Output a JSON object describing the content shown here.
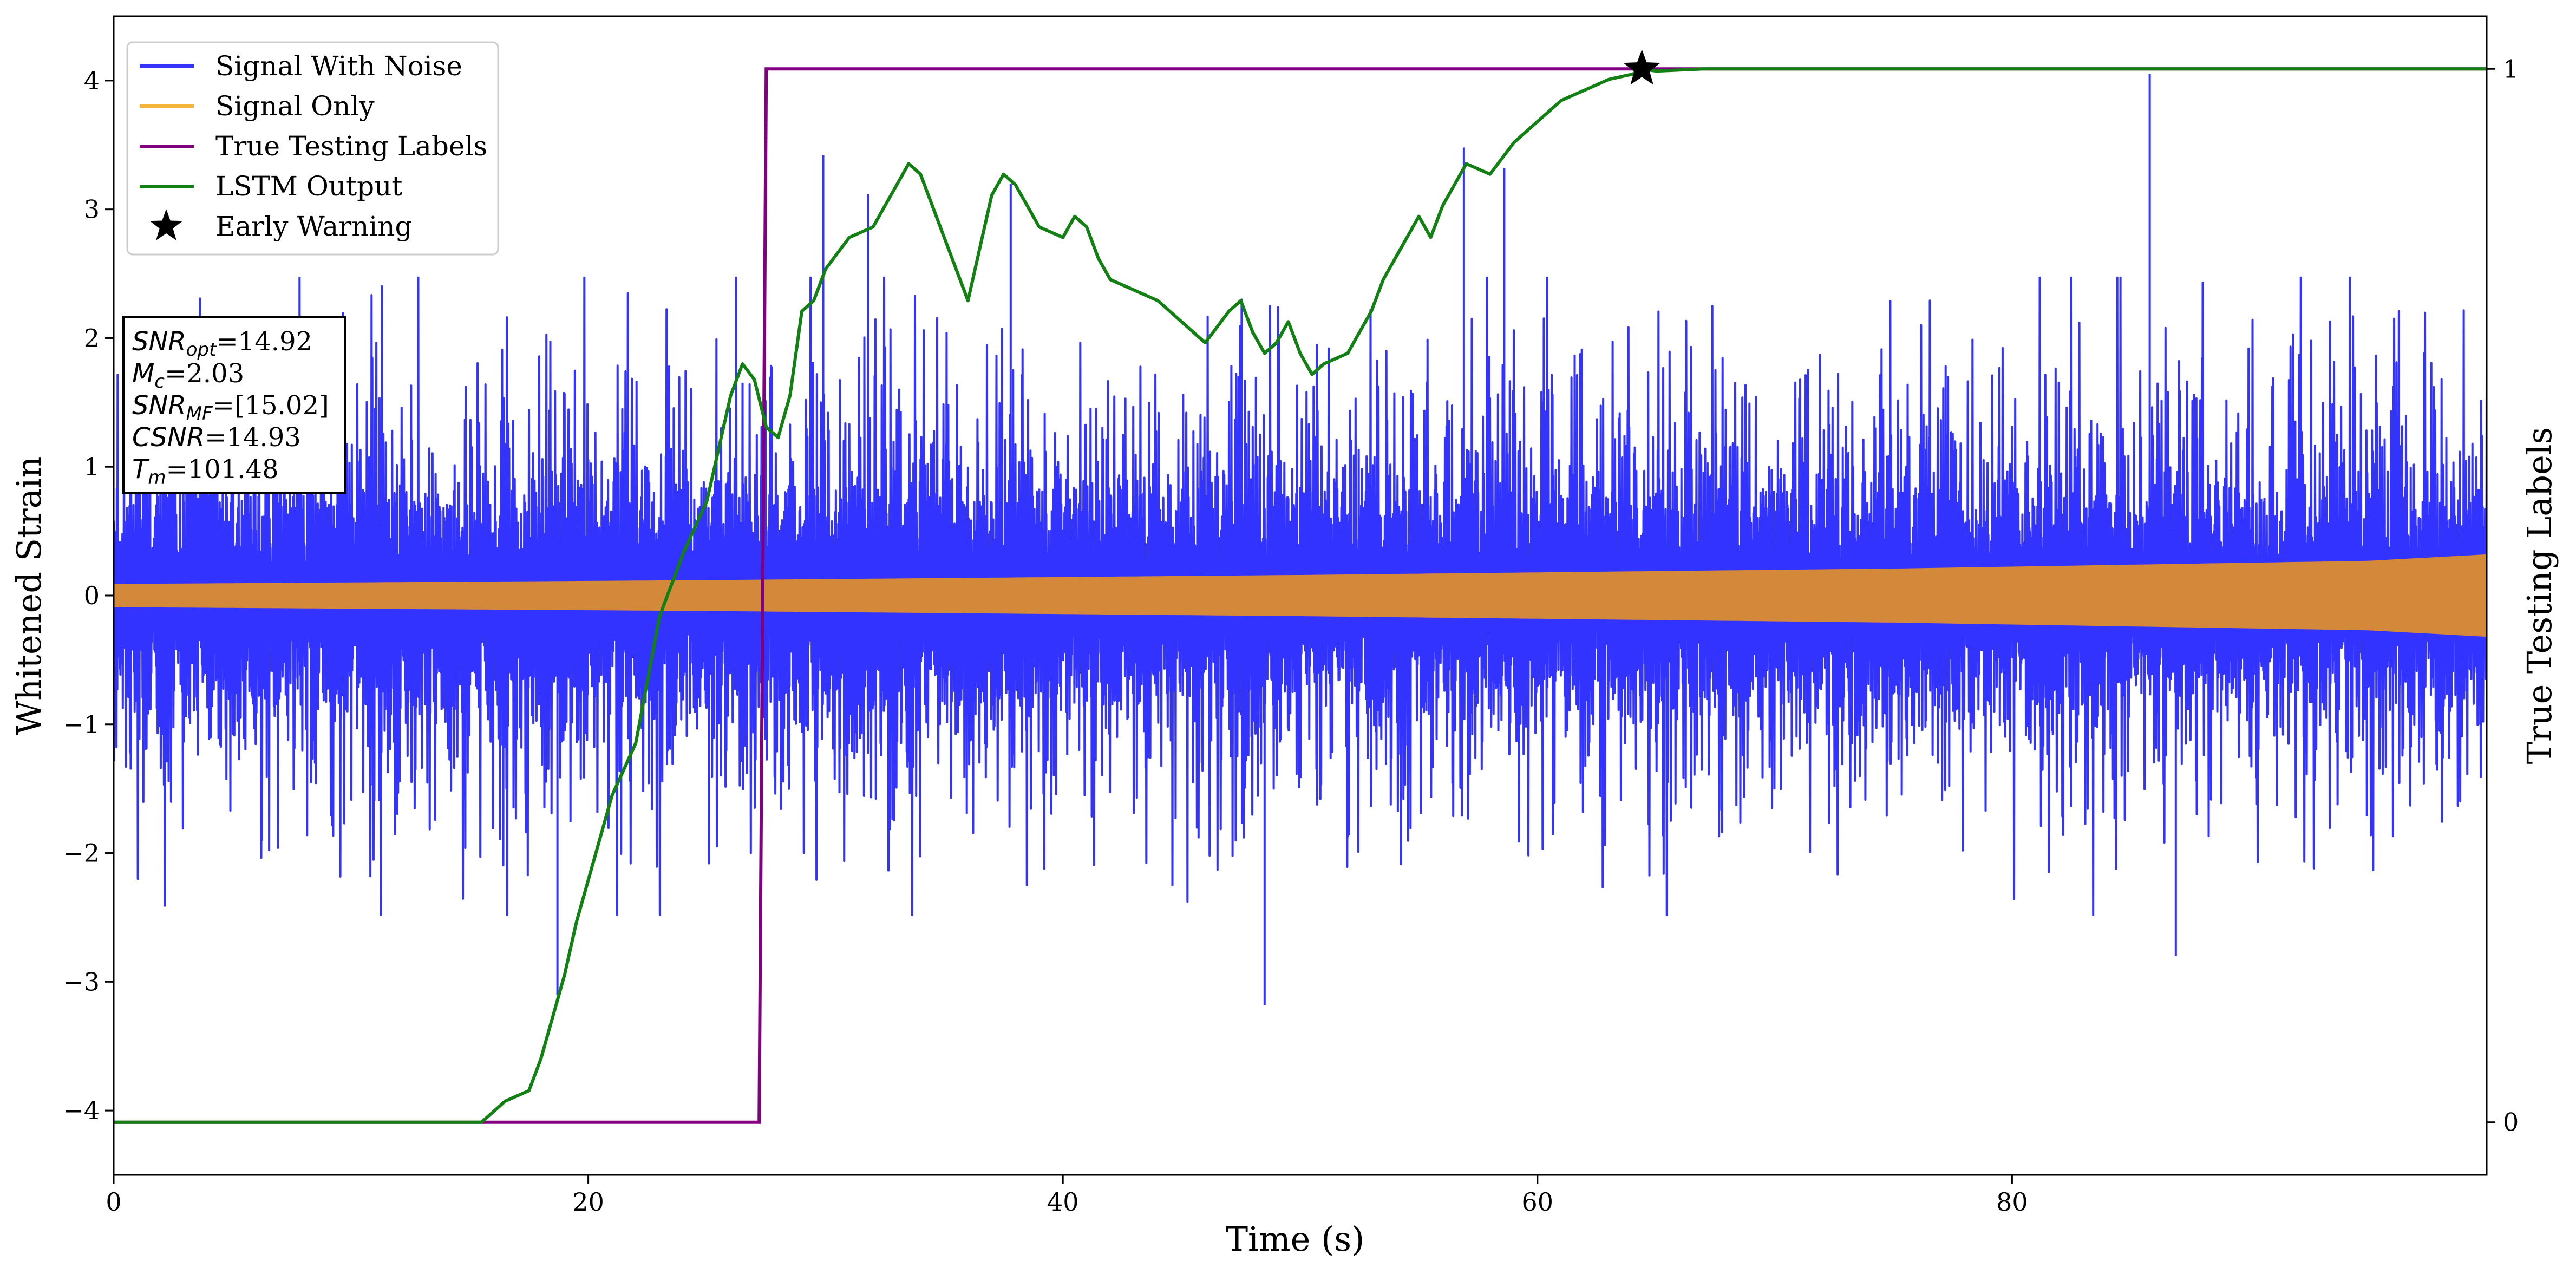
{
  "chart_data": {
    "type": "line",
    "title": "",
    "xlabel": "Time (s)",
    "ylabel": "Whitened Strain",
    "ylabel_right": "True Testing Labels",
    "xlim": [
      0,
      100
    ],
    "ylim": [
      -4.5,
      4.5
    ],
    "ylim_right": [
      -0.05,
      1.05
    ],
    "x_ticks": [
      0,
      20,
      40,
      60,
      80
    ],
    "y_ticks": [
      -4,
      -3,
      -2,
      -1,
      0,
      1,
      2,
      3,
      4
    ],
    "y_ticks_right": [
      0,
      1
    ],
    "grid": false,
    "legend_position": "top-left",
    "legend": [
      {
        "label": "Signal With Noise",
        "color": "#3333ff",
        "marker": "line"
      },
      {
        "label": "Signal Only",
        "color": "#f5b43c",
        "marker": "line"
      },
      {
        "label": "True Testing Labels",
        "color": "#800080",
        "marker": "line"
      },
      {
        "label": "LSTM Output",
        "color": "#138013",
        "marker": "line"
      },
      {
        "label": "Early Warning",
        "color": "#000000",
        "marker": "star"
      }
    ],
    "annotation_lines": [
      {
        "base": "SNR",
        "sub": "opt",
        "value": "=14.92"
      },
      {
        "base": "M",
        "sub": "c",
        "value": "=2.03"
      },
      {
        "base": "SNR",
        "sub": "MF",
        "value": "=[15.02]"
      },
      {
        "base": "CSNR",
        "sub": "",
        "value": "=14.93"
      },
      {
        "base": "T",
        "sub": "m",
        "value": "=101.48"
      }
    ],
    "series": [
      {
        "name": "Signal With Noise",
        "axis": "left",
        "color": "#3333ff",
        "description": "dense noisy strain, mostly within about -2.5 to 2.5",
        "typical_range": [
          -1.6,
          1.9
        ],
        "extreme_range": [
          -3.2,
          4.05
        ],
        "spikes": [
          {
            "x": 18.7,
            "y": -3.1
          },
          {
            "x": 29.9,
            "y": 3.42
          },
          {
            "x": 31.8,
            "y": 3.12
          },
          {
            "x": 37.8,
            "y": 3.2
          },
          {
            "x": 48.5,
            "y": -3.18
          },
          {
            "x": 56.9,
            "y": 3.48
          },
          {
            "x": 58.6,
            "y": 3.32
          },
          {
            "x": 85.8,
            "y": 4.05
          },
          {
            "x": 86.9,
            "y": -2.8
          }
        ]
      },
      {
        "name": "Signal Only",
        "axis": "left",
        "color": "#d4883a",
        "description": "chirp envelope growing with time",
        "envelope": {
          "x": [
            0,
            25,
            50,
            75,
            95,
            100
          ],
          "y": [
            0.09,
            0.12,
            0.16,
            0.21,
            0.27,
            0.32
          ]
        }
      },
      {
        "name": "True Testing Labels",
        "axis": "right",
        "color": "#800080",
        "x": [
          0,
          27.2,
          27.5,
          100
        ],
        "y": [
          0,
          0,
          1,
          1
        ]
      },
      {
        "name": "LSTM Output",
        "axis": "right",
        "color": "#138013",
        "x": [
          0,
          15.5,
          16.5,
          17.5,
          18,
          18.5,
          19,
          19.5,
          20,
          21,
          22,
          23,
          24,
          25,
          26,
          26.5,
          27,
          27.5,
          28,
          28.5,
          29,
          29.5,
          30,
          31,
          32,
          33,
          33.5,
          34,
          35,
          36,
          36.5,
          37,
          37.5,
          38,
          38.5,
          39,
          40,
          40.5,
          41,
          41.5,
          42,
          43,
          44,
          45,
          46,
          47,
          47.5,
          48,
          48.5,
          49,
          49.5,
          50,
          50.5,
          51,
          52,
          53,
          53.5,
          54,
          55,
          55.5,
          56,
          56.5,
          57,
          58,
          59,
          60,
          60.5,
          61,
          62,
          62.5,
          63,
          64,
          64.4,
          65,
          66,
          67,
          68,
          70,
          100
        ],
        "y": [
          0,
          0,
          0.02,
          0.03,
          0.06,
          0.1,
          0.14,
          0.19,
          0.23,
          0.31,
          0.36,
          0.48,
          0.54,
          0.59,
          0.69,
          0.72,
          0.705,
          0.66,
          0.65,
          0.69,
          0.77,
          0.78,
          0.81,
          0.84,
          0.85,
          0.89,
          0.91,
          0.9,
          0.84,
          0.78,
          0.83,
          0.88,
          0.9,
          0.89,
          0.87,
          0.85,
          0.84,
          0.86,
          0.85,
          0.82,
          0.8,
          0.79,
          0.78,
          0.76,
          0.74,
          0.77,
          0.78,
          0.75,
          0.73,
          0.74,
          0.76,
          0.73,
          0.71,
          0.72,
          0.73,
          0.77,
          0.8,
          0.82,
          0.86,
          0.84,
          0.87,
          0.89,
          0.91,
          0.9,
          0.93,
          0.95,
          0.96,
          0.97,
          0.98,
          0.985,
          0.99,
          0.995,
          1.0,
          0.998,
          0.999,
          1.0,
          1.0,
          1.0,
          1.0
        ]
      }
    ],
    "early_warning": {
      "x": 64.4,
      "y": 1.0,
      "axis": "right",
      "color": "#000000"
    }
  }
}
